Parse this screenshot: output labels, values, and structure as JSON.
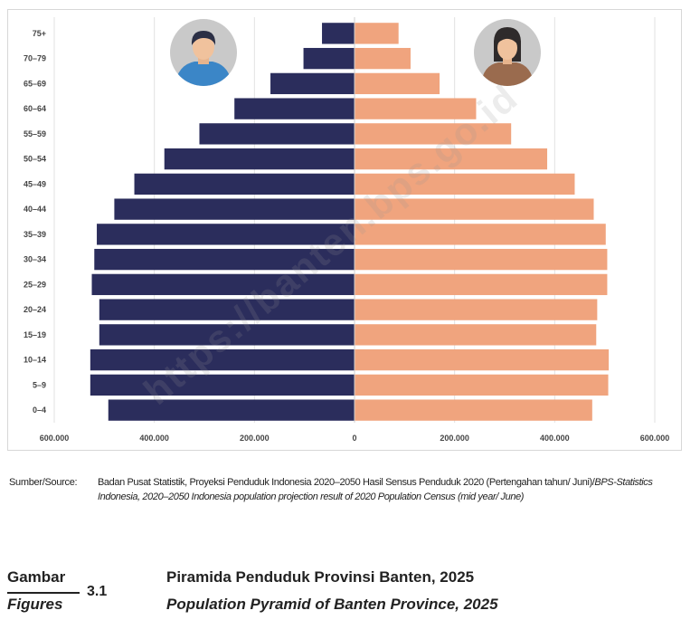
{
  "chart_data": {
    "type": "bar",
    "subtype": "population-pyramid",
    "categories": [
      "75+",
      "70–79",
      "65–69",
      "60–64",
      "55–59",
      "50–54",
      "45–49",
      "40–44",
      "35–39",
      "30–34",
      "25–29",
      "20–24",
      "15–19",
      "10–14",
      "5–9",
      "0–4"
    ],
    "series": [
      {
        "values": [
          65000,
          102000,
          168000,
          240000,
          310000,
          380000,
          440000,
          480000,
          515000,
          520000,
          525000,
          510000,
          510000,
          528000,
          528000,
          492000
        ],
        "color": "#2b2d5c",
        "side": "left"
      },
      {
        "values": [
          88000,
          112000,
          170000,
          243000,
          313000,
          385000,
          440000,
          478000,
          502000,
          505000,
          505000,
          485000,
          483000,
          508000,
          507000,
          475000
        ],
        "color": "#f0a47e",
        "side": "right"
      }
    ],
    "x_ticks": [
      "600.000",
      "400.000",
      "200.000",
      "0",
      "200.000",
      "400.000",
      "600.000"
    ],
    "xlim": [
      -600000,
      600000
    ],
    "grid": "vertical",
    "icons": {
      "left": "male-avatar-icon",
      "right": "female-avatar-icon"
    }
  },
  "source": {
    "label": "Sumber/Source:",
    "text_id": "Badan Pusat Statistik, Proyeksi Penduduk Indonesia 2020–2050 Hasil Sensus Penduduk 2020 (Pertengahan tahun/ Juni)/",
    "text_en": "BPS-Statistics Indonesia, 2020–2050 Indonesia population projection result of 2020 Population Census (mid year/ June)"
  },
  "caption": {
    "gambar": "Gambar",
    "figures": "Figures",
    "number": "3.1",
    "title_id": "Piramida Penduduk Provinsi Banten, 2025",
    "title_en": "Population Pyramid of Banten Province, 2025"
  },
  "watermark": "https://banten.bps.go.id"
}
